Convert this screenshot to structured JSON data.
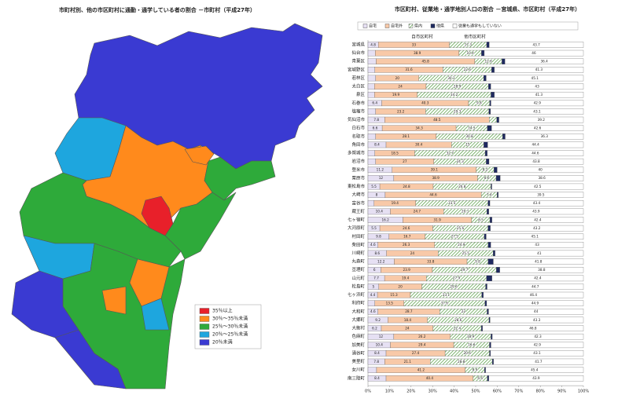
{
  "map": {
    "title": "市町村別、他の市区町村に通勤・通学している者の割合 －市町村（平成27年）",
    "legend": [
      {
        "label": "35％以上",
        "color": "#e8202a"
      },
      {
        "label": "30％～35％未満",
        "color": "#ff8a1c"
      },
      {
        "label": "25％～30％未満",
        "color": "#2eaa3a"
      },
      {
        "label": "20％～25％未満",
        "color": "#1ea6de"
      },
      {
        "label": "20％未満",
        "color": "#3a3ad2"
      }
    ]
  },
  "chart_data": {
    "type": "bar",
    "orientation": "horizontal",
    "stacked": true,
    "title": "市区町村、従業地・通学地別人口の割合 －宮城県、市区町村（平成27年）",
    "group_labels": [
      "自市区町村",
      "他市区町村"
    ],
    "categories": [
      "宮城県",
      "仙台市",
      "青葉区",
      "宮城野区",
      "若林区",
      "太白区",
      "泉区",
      "石巻市",
      "塩竈市",
      "気仙沼市",
      "白石市",
      "名取市",
      "角田市",
      "多賀城市",
      "岩沼市",
      "登米市",
      "栗原市",
      "東松島市",
      "大崎市",
      "富谷市",
      "蔵王町",
      "七ヶ宿町",
      "大河原町",
      "村田町",
      "柴田町",
      "川崎町",
      "丸森町",
      "亘理町",
      "山元町",
      "松島町",
      "七ヶ浜町",
      "利府町",
      "大和町",
      "大郷町",
      "大衡村",
      "色麻町",
      "加美町",
      "涌谷町",
      "美里町",
      "女川町",
      "南三陸町"
    ],
    "series": [
      {
        "name": "自宅",
        "color": "#e6e0f3",
        "values": [
          4.8,
          3.4,
          3.8,
          3.2,
          3.6,
          3.0,
          3.0,
          6.4,
          3.6,
          7.8,
          6.6,
          3.6,
          8.4,
          3.2,
          3.6,
          11.2,
          12.0,
          5.5,
          8.0,
          2.8,
          10.4,
          16.2,
          5.5,
          9.8,
          4.6,
          8.6,
          12.2,
          6.0,
          7.7,
          5.0,
          4.4,
          3.2,
          4.6,
          9.2,
          6.2,
          12.0,
          10.4,
          8.4,
          7.8,
          4.0,
          8.4
        ]
      },
      {
        "name": "自宅外",
        "color": "#f8c9a8",
        "values": [
          33.0,
          38.9,
          45.8,
          31.6,
          20.0,
          24.0,
          19.9,
          40.3,
          23.2,
          48.5,
          34.3,
          28.1,
          30.4,
          18.5,
          27.0,
          39.1,
          38.9,
          24.8,
          44.6,
          19.4,
          24.7,
          31.9,
          24.6,
          16.7,
          26.3,
          24.0,
          33.8,
          23.9,
          19.4,
          20.0,
          15.3,
          13.5,
          28.7,
          18.4,
          24.0,
          26.2,
          29.4,
          27.4,
          21.1,
          41.2,
          40.4
        ]
      },
      {
        "name": "県内",
        "color": "#4e9a3a",
        "hatch": true,
        "values": [
          17.3,
          10.4,
          12.6,
          22.6,
          30.1,
          28.9,
          34.2,
          9.8,
          29.3,
          3.5,
          14.5,
          30.8,
          15.0,
          32.7,
          24.3,
          8.2,
          8.6,
          26.8,
          7.4,
          33.5,
          20.1,
          8.5,
          25.6,
          27.5,
          24.9,
          25.5,
          9.8,
          29.7,
          27.9,
          29.6,
          33.1,
          37.6,
          22.0,
          28.6,
          22.4,
          18.9,
          16.6,
          20.6,
          28.8,
          8.9,
          6.6
        ]
      },
      {
        "name": "他県",
        "color": "#1f2a60",
        "values": [
          1.2,
          1.3,
          1.4,
          1.3,
          1.2,
          1.1,
          1.6,
          0.6,
          0.8,
          1.0,
          2.0,
          1.2,
          1.8,
          1.0,
          1.3,
          1.5,
          1.9,
          0.4,
          0.5,
          0.9,
          0.9,
          1.0,
          1.1,
          0.9,
          1.2,
          0.9,
          2.4,
          1.6,
          2.6,
          0.7,
          0.8,
          0.8,
          0.7,
          0.5,
          0.6,
          0.6,
          0.7,
          0.5,
          0.6,
          0.5,
          0.7
        ]
      },
      {
        "name": "従業も通学もしていない",
        "color": "#ffffff",
        "values": [
          43.7,
          46.0,
          36.4,
          41.3,
          45.1,
          43.0,
          41.3,
          42.9,
          43.1,
          39.2,
          42.6,
          36.3,
          44.4,
          44.6,
          43.8,
          40.0,
          38.6,
          42.5,
          39.5,
          43.4,
          43.9,
          42.4,
          43.2,
          45.1,
          43.0,
          41.0,
          41.8,
          38.8,
          42.4,
          44.7,
          46.4,
          44.9,
          44.0,
          43.3,
          46.8,
          42.3,
          42.9,
          43.1,
          41.7,
          45.4,
          43.9
        ]
      }
    ],
    "xlim": [
      0,
      100
    ],
    "xticks": [
      {
        "value": 0,
        "label": "0%"
      },
      {
        "value": 10,
        "label": "10%"
      },
      {
        "value": 20,
        "label": "20%"
      },
      {
        "value": 30,
        "label": "30%"
      },
      {
        "value": 40,
        "label": "40%"
      },
      {
        "value": 50,
        "label": "50%"
      },
      {
        "value": 60,
        "label": "60%"
      },
      {
        "value": 70,
        "label": "70%"
      },
      {
        "value": 80,
        "label": "80%"
      },
      {
        "value": 90,
        "label": "90%"
      },
      {
        "value": 100,
        "label": "100%"
      }
    ],
    "grid": false
  }
}
